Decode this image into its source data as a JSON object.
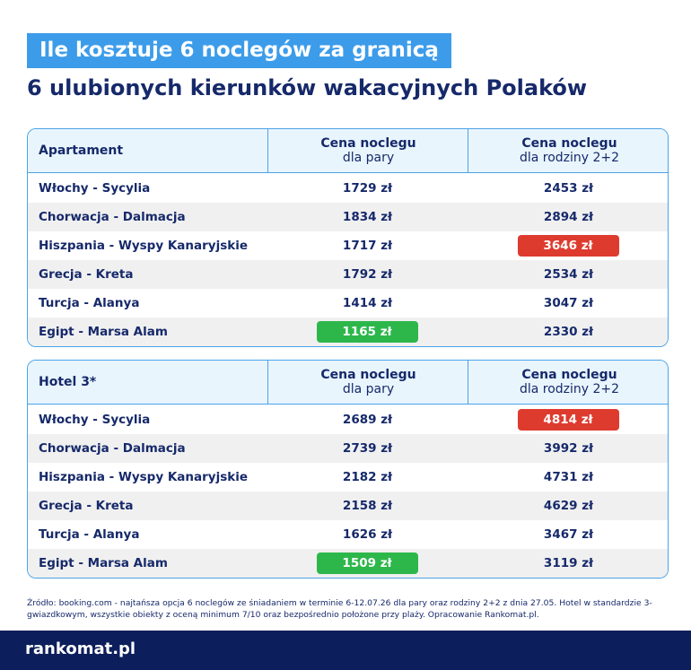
{
  "header": {
    "title": "Ile kosztuje 6 noclegów za granicą",
    "subtitle": "6 ulubionych kierunków wakacyjnych Polaków"
  },
  "tables": [
    {
      "columns": [
        {
          "title": "Apartament"
        },
        {
          "title": "Cena noclegu",
          "subtitle": "dla pary"
        },
        {
          "title": "Cena noclegu",
          "subtitle": "dla rodziny 2+2"
        }
      ],
      "rows": [
        {
          "label": "Włochy - Sycylia",
          "cells": [
            "1729 zł",
            "2453 zł"
          ]
        },
        {
          "label": "Chorwacja - Dalmacja",
          "cells": [
            "1834 zł",
            "2894 zł"
          ]
        },
        {
          "label": "Hiszpania - Wyspy Kanaryjskie",
          "cells": [
            "1717 zł",
            "3646 zł"
          ]
        },
        {
          "label": "Grecja - Kreta",
          "cells": [
            "1792 zł",
            "2534 zł"
          ]
        },
        {
          "label": "Turcja - Alanya",
          "cells": [
            "1414 zł",
            "3047 zł"
          ]
        },
        {
          "label": "Egipt - Marsa Alam",
          "cells": [
            "1165 zł",
            "2330 zł"
          ]
        }
      ],
      "marked": [
        {
          "row": 5,
          "cell": 0,
          "color": "#2db74b"
        },
        {
          "row": 2,
          "cell": 1,
          "color": "#de3b2f"
        }
      ]
    },
    {
      "columns": [
        {
          "title": "Hotel 3*"
        },
        {
          "title": "Cena noclegu",
          "subtitle": "dla pary"
        },
        {
          "title": "Cena noclegu",
          "subtitle": "dla rodziny 2+2"
        }
      ],
      "rows": [
        {
          "label": "Włochy - Sycylia",
          "cells": [
            "2689 zł",
            "4814 zł"
          ]
        },
        {
          "label": "Chorwacja - Dalmacja",
          "cells": [
            "2739 zł",
            "3992 zł"
          ]
        },
        {
          "label": "Hiszpania - Wyspy Kanaryjskie",
          "cells": [
            "2182 zł",
            "4731 zł"
          ]
        },
        {
          "label": "Grecja - Kreta",
          "cells": [
            "2158 zł",
            "4629 zł"
          ]
        },
        {
          "label": "Turcja - Alanya",
          "cells": [
            "1626 zł",
            "3467 zł"
          ]
        },
        {
          "label": "Egipt - Marsa Alam",
          "cells": [
            "1509 zł",
            "3119 zł"
          ]
        }
      ],
      "marked": [
        {
          "row": 5,
          "cell": 0,
          "color": "#2db74b"
        },
        {
          "row": 0,
          "cell": 1,
          "color": "#de3b2f"
        }
      ]
    }
  ],
  "footnote": "Źródło: booking.com - najtańsza opcja 6 noclegów ze śniadaniem w terminie 6-12.07.26 dla pary oraz rodziny 2+2 z dnia 27.05. Hotel w standardzie 3-gwiazdkowym, wszystkie obiekty z oceną minimum 7/10 oraz bezpośrednio położone przy plaży. Opracowanie Rankomat.pl.",
  "logo": "rankomat.pl"
}
